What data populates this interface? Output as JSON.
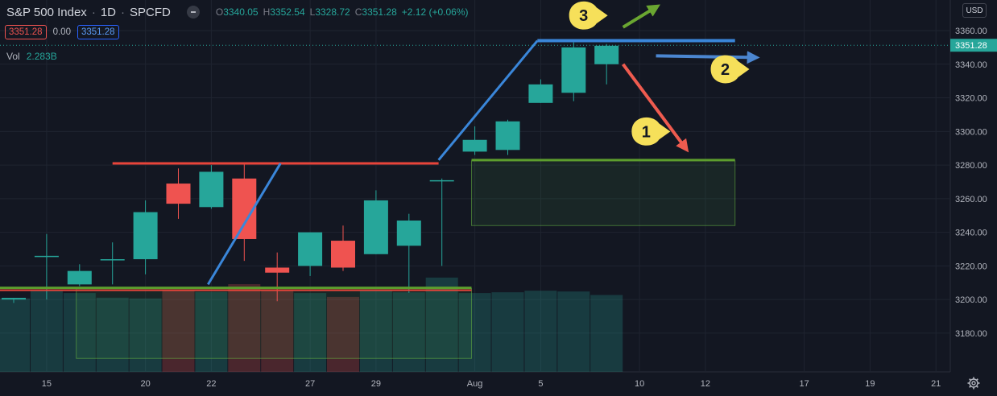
{
  "header": {
    "symbol": "S&P 500 Index",
    "interval": "1D",
    "exchange": "SPCFD",
    "open_label": "O",
    "open": "3340.05",
    "high_label": "H",
    "high": "3352.54",
    "low_label": "L",
    "low": "3328.72",
    "close_label": "C",
    "close": "3351.28",
    "change": "+2.12 (+0.06%)"
  },
  "price_boxes": {
    "bid": "3351.28",
    "spread": "0.00",
    "ask": "3351.28"
  },
  "volume": {
    "label": "Vol",
    "value": "2.283B"
  },
  "currency_button": "USD",
  "colors": {
    "up": "#26a69a",
    "down": "#ef5350",
    "background": "#131722",
    "grid": "#1f2430",
    "trend_blue": "#3a86d9",
    "resistance_red": "#e8443a",
    "support_green": "#5d9e2e",
    "arrow_red": "#ef5b4f",
    "arrow_green": "#6aa631",
    "arrow_blue": "#4b86d0",
    "callout_yellow": "#f6e05a"
  },
  "chart_data": {
    "type": "candlestick",
    "title": "S&P 500 Index · 1D · SPCFD",
    "y_ticks": [
      "3180.00",
      "3200.00",
      "3220.00",
      "3240.00",
      "3260.00",
      "3280.00",
      "3300.00",
      "3320.00",
      "3340.00",
      "3360.00"
    ],
    "ylim": [
      3161,
      3367
    ],
    "x_ticks": [
      {
        "label": "15",
        "bar": 1
      },
      {
        "label": "20",
        "bar": 4
      },
      {
        "label": "22",
        "bar": 6
      },
      {
        "label": "27",
        "bar": 9
      },
      {
        "label": "29",
        "bar": 11
      },
      {
        "label": "Aug",
        "bar": 14
      },
      {
        "label": "5",
        "bar": 16
      },
      {
        "label": "10",
        "bar": 19
      },
      {
        "label": "12",
        "bar": 21
      },
      {
        "label": "17",
        "bar": 24
      },
      {
        "label": "19",
        "bar": 26
      },
      {
        "label": "21",
        "bar": 28
      }
    ],
    "last_price": "3351.28",
    "last_price_value": 3351.28,
    "candles": [
      {
        "bar": 0,
        "o": 3200,
        "h": 3201,
        "l": 3198,
        "c": 3201
      },
      {
        "bar": 1,
        "o": 3226,
        "h": 3239,
        "l": 3200,
        "c": 3226
      },
      {
        "bar": 2,
        "o": 3209,
        "h": 3221,
        "l": 3208,
        "c": 3217
      },
      {
        "bar": 3,
        "o": 3224,
        "h": 3234,
        "l": 3209,
        "c": 3224
      },
      {
        "bar": 4,
        "o": 3224,
        "h": 3259,
        "l": 3215,
        "c": 3252
      },
      {
        "bar": 5,
        "o": 3269,
        "h": 3278,
        "l": 3248,
        "c": 3257
      },
      {
        "bar": 6,
        "o": 3255,
        "h": 3280,
        "l": 3254,
        "c": 3276
      },
      {
        "bar": 7,
        "o": 3272,
        "h": 3281,
        "l": 3223,
        "c": 3236
      },
      {
        "bar": 8,
        "o": 3219,
        "h": 3228,
        "l": 3199,
        "c": 3216
      },
      {
        "bar": 9,
        "o": 3220,
        "h": 3240,
        "l": 3214,
        "c": 3240
      },
      {
        "bar": 10,
        "o": 3235,
        "h": 3244,
        "l": 3217,
        "c": 3219
      },
      {
        "bar": 11,
        "o": 3227,
        "h": 3265,
        "l": 3227,
        "c": 3259
      },
      {
        "bar": 12,
        "o": 3232,
        "h": 3251,
        "l": 3204,
        "c": 3247
      },
      {
        "bar": 13,
        "o": 3271,
        "h": 3272,
        "l": 3220,
        "c": 3271
      },
      {
        "bar": 14,
        "o": 3288,
        "h": 3303,
        "l": 3286,
        "c": 3295
      },
      {
        "bar": 15,
        "o": 3289,
        "h": 3307,
        "l": 3286,
        "c": 3306
      },
      {
        "bar": 16,
        "o": 3317,
        "h": 3331,
        "l": 3317,
        "c": 3328
      },
      {
        "bar": 17,
        "o": 3323,
        "h": 3353,
        "l": 3318,
        "c": 3350
      },
      {
        "bar": 18,
        "o": 3340,
        "h": 3352,
        "l": 3328,
        "c": 3351
      }
    ],
    "volumes": [
      {
        "bar": 0,
        "v": 1.9,
        "up": true
      },
      {
        "bar": 1,
        "v": 2.12,
        "up": true
      },
      {
        "bar": 2,
        "v": 2.04,
        "up": true
      },
      {
        "bar": 3,
        "v": 1.92,
        "up": true
      },
      {
        "bar": 4,
        "v": 1.9,
        "up": true
      },
      {
        "bar": 5,
        "v": 2.12,
        "up": false
      },
      {
        "bar": 6,
        "v": 2.07,
        "up": true
      },
      {
        "bar": 7,
        "v": 2.27,
        "up": false
      },
      {
        "bar": 8,
        "v": 2.12,
        "up": false
      },
      {
        "bar": 9,
        "v": 2.04,
        "up": true
      },
      {
        "bar": 10,
        "v": 1.94,
        "up": false
      },
      {
        "bar": 11,
        "v": 2.1,
        "up": true
      },
      {
        "bar": 12,
        "v": 2.06,
        "up": true
      },
      {
        "bar": 13,
        "v": 2.44,
        "up": true
      },
      {
        "bar": 14,
        "v": 2.04,
        "up": true
      },
      {
        "bar": 15,
        "v": 2.06,
        "up": true
      },
      {
        "bar": 16,
        "v": 2.1,
        "up": true
      },
      {
        "bar": 17,
        "v": 2.08,
        "up": true
      },
      {
        "bar": 18,
        "v": 1.99,
        "up": true
      }
    ],
    "drawings": {
      "resistance_line": {
        "x1": 3,
        "x2": 12.9,
        "y": 3281
      },
      "support_line": {
        "x1": -1.5,
        "x2": 13.9,
        "y": 3206.5
      },
      "trend_line_1": {
        "x1": 5.9,
        "y1": 3209,
        "x2": 8.1,
        "y2": 3281
      },
      "trend_line_2": {
        "x1": 12.9,
        "y1": 3283,
        "x2": 15.9,
        "y2": 3354
      },
      "top_line": {
        "x1": 15.9,
        "x2": 21.9,
        "y": 3354
      },
      "support_box_1": {
        "x1": 1.9,
        "x2": 13.9,
        "ytop": 3206.5,
        "ybot": 3165
      },
      "support_box_2": {
        "x1": 13.9,
        "x2": 21.9,
        "ytop": 3282.5,
        "ybot": 3244
      },
      "arrow_down": {
        "x1": 18.5,
        "y1": 3340,
        "x2": 20.4,
        "y2": 3290
      },
      "arrow_up": {
        "x1": 18.5,
        "y1": 3362,
        "x2": 19.5,
        "y2": 3374
      },
      "arrow_side": {
        "x1": 19.5,
        "y1": 3345,
        "x2": 22.5,
        "y2": 3344
      }
    },
    "callouts": [
      {
        "label": "1",
        "bar": 19.3,
        "y": 3300
      },
      {
        "label": "2",
        "bar": 21.7,
        "y": 3337
      },
      {
        "label": "3",
        "bar": 17.4,
        "y": 3369
      }
    ]
  }
}
